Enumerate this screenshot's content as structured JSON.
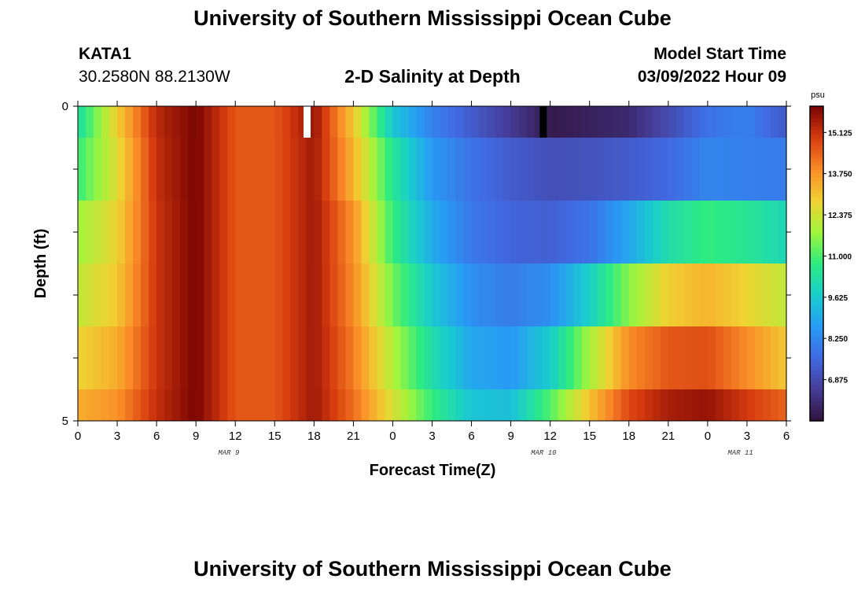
{
  "header": {
    "title": "University of Southern Mississippi Ocean Cube",
    "station": "KATA1",
    "coords": "30.2580N  88.2130W",
    "plot_title": "2-D Salinity at Depth",
    "model_label": "Model Start Time",
    "model_time": "03/09/2022 Hour 09"
  },
  "footer": {
    "title": "University of Southern Mississippi Ocean Cube"
  },
  "chart_data": {
    "type": "heatmap",
    "title": "2-D Salinity at Depth",
    "xlabel": "Forecast Time(Z)",
    "ylabel": "Depth (ft)",
    "x_tick_labels": [
      "0",
      "3",
      "6",
      "9",
      "12",
      "15",
      "18",
      "21",
      "0",
      "3",
      "6",
      "9",
      "12",
      "15",
      "18",
      "21",
      "0",
      "3",
      "6"
    ],
    "x_hours_start": 0,
    "x_hours_end": 54,
    "date_labels": [
      {
        "label": "MAR 9",
        "hour": 11.5
      },
      {
        "label": "MAR 10",
        "hour": 35.5
      },
      {
        "label": "MAR 11",
        "hour": 50.5
      }
    ],
    "y_tick_labels": [
      "0",
      "5"
    ],
    "ylim": [
      0,
      5
    ],
    "colorbar": {
      "unit": "psu",
      "ticks": [
        "15.125",
        "13.750",
        "12.375",
        "11.000",
        "9.625",
        "8.250",
        "6.875"
      ],
      "vmin": 5.5,
      "vmax": 16.0
    },
    "depth_layers": [
      "0-0.5",
      "0.5-1.5",
      "1.5-2.5",
      "2.5-3.5",
      "3.5-4.5",
      "4.5-5"
    ],
    "time_hours": [
      0,
      3,
      6,
      9,
      12,
      15,
      18,
      21,
      24,
      27,
      30,
      33,
      36,
      39,
      42,
      45,
      48,
      51,
      54
    ],
    "salinity_psu": [
      [
        10.2,
        12.9,
        15.3,
        16.0,
        14.6,
        14.6,
        15.7,
        13.0,
        9.6,
        8.1,
        7.3,
        6.5,
        5.7,
        5.9,
        6.1,
        6.9,
        7.8,
        8.1,
        7.2
      ],
      [
        10.8,
        12.6,
        15.2,
        16.0,
        14.6,
        14.6,
        15.6,
        13.3,
        10.5,
        8.6,
        7.8,
        7.3,
        7.0,
        7.1,
        7.3,
        7.6,
        8.2,
        8.1,
        8.0
      ],
      [
        11.8,
        12.8,
        15.1,
        16.0,
        14.6,
        14.6,
        15.6,
        13.8,
        10.8,
        9.0,
        7.9,
        7.5,
        7.4,
        7.8,
        8.9,
        10.2,
        10.8,
        10.5,
        10.0
      ],
      [
        12.2,
        13.0,
        15.1,
        16.0,
        14.6,
        14.6,
        15.6,
        13.9,
        11.4,
        9.6,
        8.4,
        8.0,
        8.4,
        9.8,
        11.6,
        12.9,
        13.3,
        12.8,
        12.2
      ],
      [
        12.8,
        13.4,
        15.1,
        16.0,
        14.6,
        14.6,
        15.6,
        14.1,
        12.0,
        10.2,
        8.9,
        8.6,
        9.7,
        11.9,
        13.9,
        14.6,
        14.7,
        13.9,
        13.0
      ],
      [
        13.4,
        13.8,
        15.2,
        16.0,
        14.6,
        14.6,
        15.6,
        14.3,
        12.5,
        10.8,
        9.5,
        9.4,
        11.1,
        13.1,
        14.8,
        15.5,
        15.7,
        15.0,
        14.4
      ]
    ],
    "missing_cells": [
      {
        "hour": 17.5,
        "layer": 0,
        "color": "#ffffff"
      },
      {
        "hour": 35.5,
        "layer": 0,
        "color": "#000000"
      }
    ]
  }
}
